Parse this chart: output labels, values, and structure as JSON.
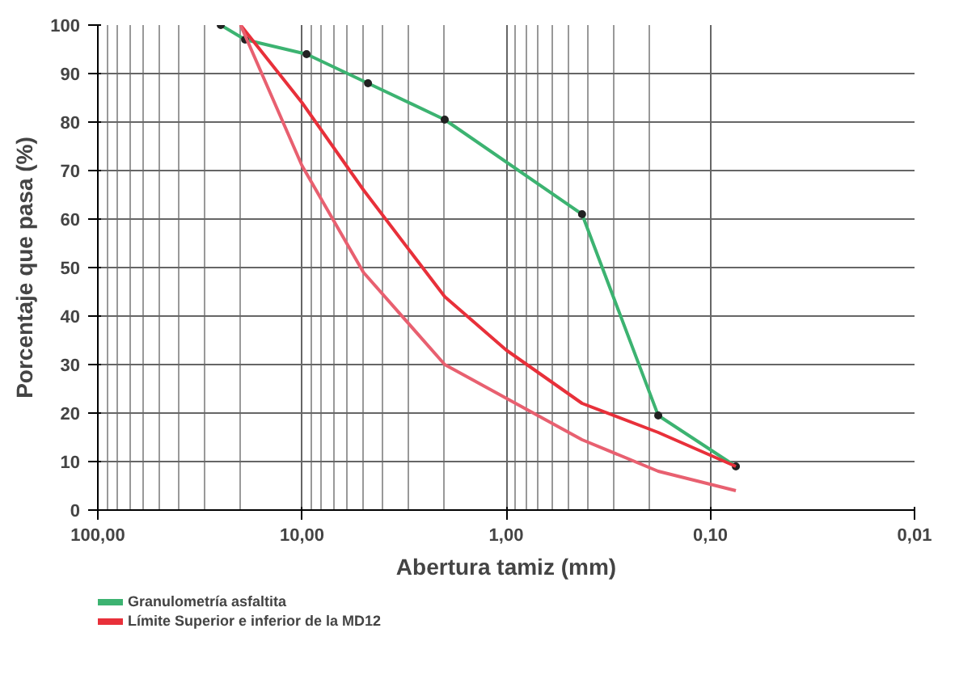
{
  "chart_data": {
    "type": "line",
    "xlabel": "Abertura tamiz (mm)",
    "ylabel": "Porcentaje que pasa (%)",
    "log": "x",
    "xlim": [
      100,
      0.01
    ],
    "ylim": [
      0,
      100
    ],
    "xticks": [
      {
        "value": 100,
        "label": "100,00"
      },
      {
        "value": 10,
        "label": "10,00"
      },
      {
        "value": 1,
        "label": "1,00"
      },
      {
        "value": 0.1,
        "label": "0,10"
      },
      {
        "value": 0.01,
        "label": "0,01"
      }
    ],
    "yticks": [
      0,
      10,
      20,
      30,
      40,
      50,
      60,
      70,
      80,
      90,
      100
    ],
    "grid": true,
    "legend": "bottom left",
    "series": [
      {
        "name": "Granulometría asfaltita",
        "color": "#3cb371",
        "marker": "circle",
        "x": [
          25,
          19,
          9.5,
          4.75,
          2,
          0.425,
          0.18,
          0.075
        ],
        "values": [
          100,
          97,
          94,
          88,
          80.5,
          61,
          19.5,
          9
        ]
      },
      {
        "name": "Límite Superior e inferior de la MD12",
        "color": "#e8303a",
        "marker": "none",
        "x": [
          20,
          10,
          5,
          2,
          1,
          0.425,
          0.18,
          0.075
        ],
        "values": [
          100,
          84,
          66,
          44,
          33,
          22,
          16,
          9
        ]
      },
      {
        "color": "#e86070",
        "marker": "none",
        "x": [
          20,
          10,
          5,
          2,
          0.425,
          0.18,
          0.075
        ],
        "values": [
          100,
          71,
          49,
          30,
          14.5,
          8,
          4
        ]
      }
    ]
  }
}
